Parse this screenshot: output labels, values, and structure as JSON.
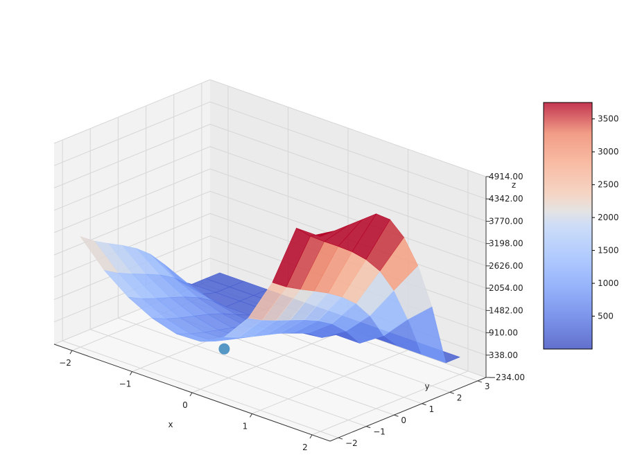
{
  "chart_data": {
    "type": "surface3d",
    "title": "",
    "xlabel": "x",
    "ylabel": "y",
    "zlabel": "z",
    "xlim": [
      -2.3,
      2.3
    ],
    "ylim": [
      -2.3,
      3.3
    ],
    "zlim": [
      -234,
      4914
    ],
    "x_ticks": [
      "−2",
      "−1",
      "0",
      "1",
      "2"
    ],
    "x_tick_values": [
      -2,
      -1,
      0,
      1,
      2
    ],
    "y_ticks": [
      "−2",
      "−1",
      "0",
      "1",
      "2",
      "3"
    ],
    "y_tick_values": [
      -2,
      -1,
      0,
      1,
      2,
      3
    ],
    "z_ticks": [
      "−234.00",
      "338.00",
      "910.00",
      "1482.00",
      "2054.00",
      "2626.00",
      "3198.00",
      "3770.00",
      "4342.00",
      "4914.00"
    ],
    "z_tick_values": [
      -234,
      338,
      910,
      1482,
      2054,
      2626,
      3198,
      3770,
      4342,
      4914
    ],
    "colormap": "coolwarm",
    "surface_alpha": 0.8,
    "colorbar": {
      "ticks": [
        "500",
        "1000",
        "1500",
        "2000",
        "2500",
        "3000",
        "3500"
      ],
      "tick_values": [
        500,
        1000,
        1500,
        2000,
        2500,
        3000,
        3500
      ],
      "range": [
        0,
        3750
      ]
    },
    "grid": true,
    "marker_point": {
      "x": -0.3,
      "y": -0.5,
      "z": 200,
      "color": "#1f77b4"
    },
    "surface_grid": {
      "x": [
        -2.0,
        -1.6,
        -1.2,
        -0.8,
        -0.4,
        0.0,
        0.4,
        0.8,
        1.2,
        1.6,
        2.0
      ],
      "y": [
        -2.0,
        -1.5,
        -1.0,
        -0.5,
        0.0,
        0.5,
        1.0,
        1.5,
        2.0,
        2.5,
        3.0
      ],
      "z": [
        [
          2600,
          2340,
          2131,
          1937,
          1715,
          1421,
          1016,
          461,
          212,
          212,
          212
        ],
        [
          1947,
          1733,
          1566,
          1414,
          1248,
          1031,
          732,
          322,
          212,
          212,
          212
        ],
        [
          1476,
          1294,
          1154,
          1031,
          902,
          738,
          515,
          212,
          212,
          212,
          212
        ],
        [
          1152,
          994,
          875,
          774,
          671,
          544,
          373,
          212,
          212,
          212,
          212
        ],
        [
          970,
          826,
          719,
          631,
          544,
          438,
          296,
          212,
          212,
          212,
          212
        ],
        [
          994,
          851,
          746,
          658,
          572,
          468,
          327,
          212,
          212,
          212,
          212
        ],
        [
          1322,
          1162,
          1041,
          937,
          834,
          709,
          543,
          286,
          212,
          212,
          212
        ],
        [
          2026,
          1828,
          1675,
          1537,
          1398,
          1228,
          1005,
          668,
          212,
          212,
          212
        ],
        [
          3153,
          2892,
          2685,
          2495,
          2296,
          2055,
          1740,
          1276,
          622,
          212,
          212
        ],
        [
          4760,
          4409,
          4125,
          3857,
          3572,
          3228,
          2787,
          2146,
          1257,
          212,
          212
        ],
        [
          4760,
          4760,
          4760,
          4760,
          4760,
          4468,
          3865,
          2998,
          1800,
          212,
          212
        ]
      ]
    }
  }
}
